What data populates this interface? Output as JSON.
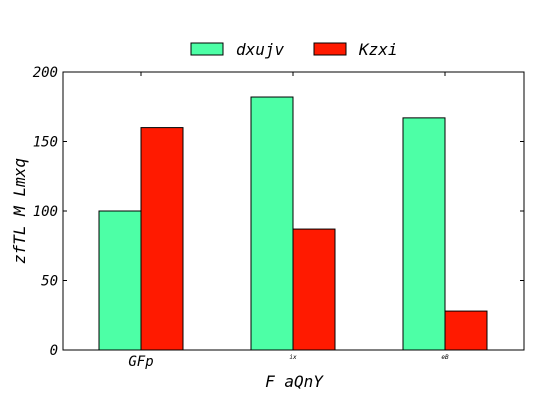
{
  "chart_data": {
    "type": "bar",
    "title": "",
    "xlabel": "F aQnY",
    "ylabel": "zfTL M Lmxq",
    "categories": [
      "GFp",
      "ix",
      "eB"
    ],
    "series": [
      {
        "name": "dxujv",
        "color": "#4dffa6",
        "values": [
          100,
          182,
          167
        ]
      },
      {
        "name": "Kzxi",
        "color": "#ff1a00",
        "values": [
          160,
          87,
          28
        ]
      }
    ],
    "ylim": [
      0,
      200
    ],
    "yticks": [
      0,
      50,
      100,
      150,
      200
    ],
    "grid": false,
    "legend_position": "top-center"
  }
}
